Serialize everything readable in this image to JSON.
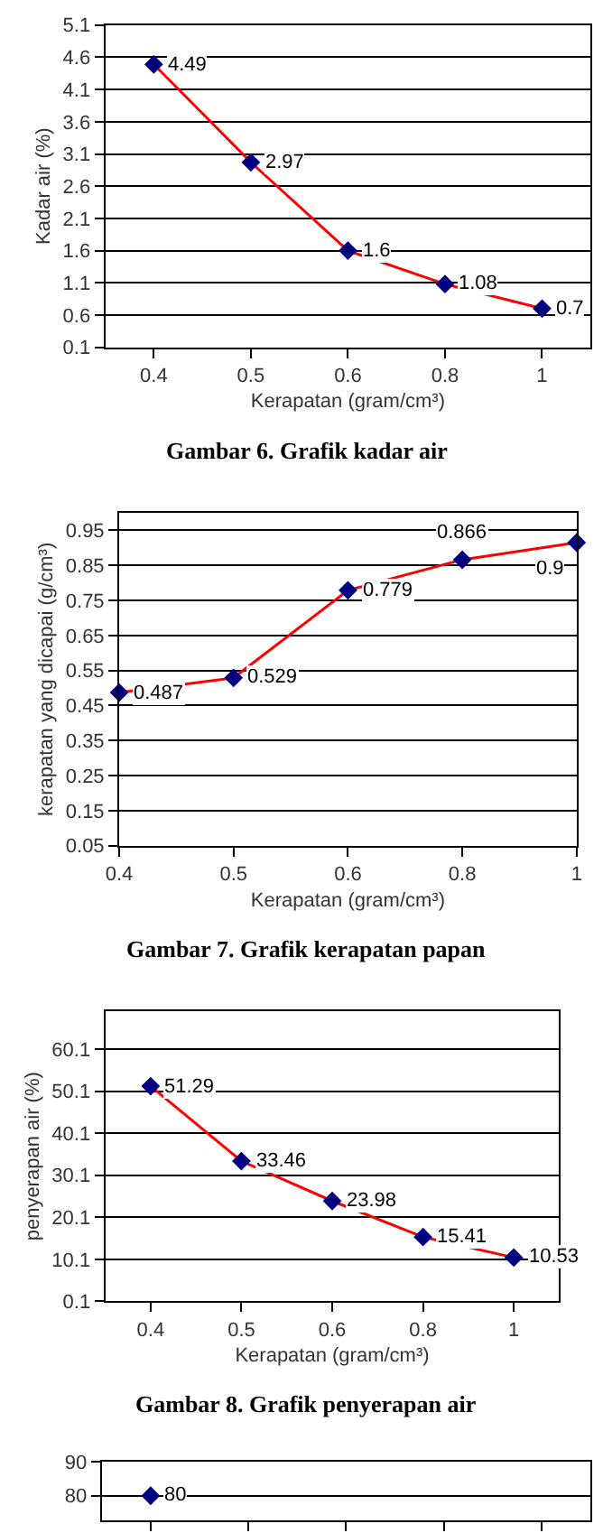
{
  "chart_data": [
    {
      "type": "line",
      "xlabel": "Kerapatan (gram/cm³)",
      "ylabel": "Kadar air (%)",
      "categories": [
        "0.4",
        "0.5",
        "0.6",
        "0.8",
        "1"
      ],
      "series": [
        {
          "color": "#ff0000",
          "colors": [
            "#000080",
            "#000080",
            "#000080",
            "#000080",
            "#000080"
          ],
          "values": [
            4.49,
            2.97,
            1.6,
            1.08,
            0.7
          ]
        }
      ],
      "ylim": [
        0.1,
        5.1
      ],
      "yticks": [
        0.1,
        0.6,
        1.1,
        1.6,
        2.1,
        2.6,
        3.1,
        3.6,
        4.1,
        4.6,
        5.1
      ],
      "grid": "y",
      "marker": "diamond",
      "data_labels": true,
      "annotations": [
        "Gambar 6. Grafik kadar air"
      ]
    },
    {
      "type": "line",
      "xlabel": "Kerapatan (gram/cm³)",
      "ylabel": "kerapatan yang dicapai (g/cm³)",
      "categories": [
        "0.4",
        "0.5",
        "0.6",
        "0.8",
        "1"
      ],
      "series": [
        {
          "color": "#ff0000",
          "colors": [
            "#000080",
            "#000080",
            "#000080",
            "#000080",
            "#000080"
          ],
          "values": [
            0.487,
            0.529,
            0.779,
            0.866,
            0.915
          ],
          "value_labels": [
            "0.487",
            "0.529",
            "0.779",
            "0.866",
            "0.9"
          ]
        }
      ],
      "ylim": [
        0.05,
        1.0
      ],
      "yticks": [
        0.05,
        0.15,
        0.25,
        0.35,
        0.45,
        0.55,
        0.65,
        0.75,
        0.85,
        0.95
      ],
      "grid": "y",
      "marker": "diamond",
      "annotations": [
        "Gambar 7. Grafik kerapatan papan"
      ]
    },
    {
      "type": "line",
      "xlabel": "Kerapatan (gram/cm³)",
      "ylabel": "penyerapan air (%)",
      "categories": [
        "0.4",
        "0.5",
        "0.6",
        "0.8",
        "1"
      ],
      "series": [
        {
          "color": "#ff0000",
          "colors": [
            "#000080",
            "#000080",
            "#000080",
            "#000080",
            "#000080"
          ],
          "values": [
            51.29,
            33.46,
            23.98,
            15.41,
            10.53
          ]
        }
      ],
      "ylim": [
        0.1,
        69.1
      ],
      "yticks": [
        0.1,
        10.1,
        20.1,
        30.1,
        40.1,
        50.1,
        60.1
      ],
      "grid": "y",
      "marker": "diamond",
      "data_labels": true,
      "annotations": [
        "Gambar 8. Grafik penyerapan air"
      ]
    },
    {
      "type": "line",
      "categories": [
        "0.4",
        "0.5",
        "0.6",
        "0.8",
        "1"
      ],
      "series": [
        {
          "color": "#000080",
          "colors": [
            "#000080",
            null,
            null,
            null,
            null
          ],
          "values": [
            80,
            null,
            null,
            null,
            null
          ]
        }
      ],
      "ylim": [
        72.8,
        90
      ],
      "yticks": [
        80,
        90
      ],
      "grid": "y",
      "marker": "diamond",
      "data_labels": true,
      "tick_labels": "y"
    }
  ]
}
